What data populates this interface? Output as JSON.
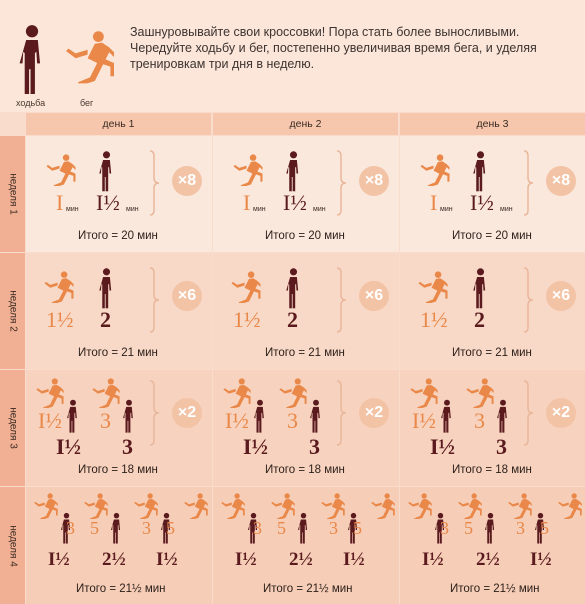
{
  "legend": {
    "walk_label": "ходьба",
    "run_label": "бег",
    "walk_icon": "walking-person-icon",
    "run_icon": "running-person-icon"
  },
  "intro_text": "Зашнуровывайте свои кроссовки! Пора стать более выносливыми. Чередуйте ходьбу и бег, постепенно увеличивая время бега, и уделяя тренировкам три дня в неделю.",
  "days": [
    "день 1",
    "день 2",
    "день 3"
  ],
  "weeks": [
    {
      "label": "неделя 1",
      "run": "I",
      "walk": "I½",
      "run_unit": "мин",
      "walk_unit": "мин",
      "repeat": "×8",
      "total": "Итого  = 20 мин"
    },
    {
      "label": "неделя 2",
      "run": "1½",
      "walk": "2",
      "repeat": "×6",
      "total": "Итого  = 21 мин"
    },
    {
      "label": "неделя 3",
      "run_a": "I½",
      "run_b": "3",
      "walk_a": "I½",
      "walk_b": "3",
      "repeat": "×2",
      "total": "Итого  = 18 мин"
    },
    {
      "label": "неделя 4",
      "r1": "3",
      "r2": "5",
      "r3": "3",
      "r4": "5",
      "w1": "I½",
      "w2": "2½",
      "w3": "I½",
      "total": "Итого  = 21½ мин"
    }
  ],
  "colors": {
    "run": "#e98848",
    "walk": "#5a1a1e",
    "badge": "#f3c3a6",
    "bg": "#f9dccb"
  }
}
